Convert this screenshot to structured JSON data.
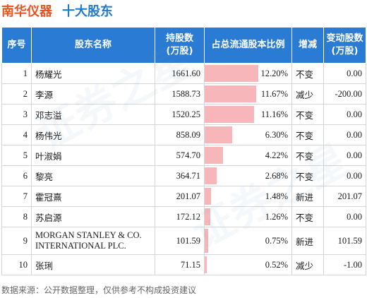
{
  "title": {
    "company": "南华仪器",
    "section": "十大股东"
  },
  "columns": [
    "序号",
    "股东名称",
    "持股数\n(万股)",
    "占总流通股本比例",
    "增减",
    "变动股数\n(万股)"
  ],
  "rows": [
    {
      "rank": "1",
      "name": "杨耀光",
      "shares": "1661.60",
      "ratio": "12.20%",
      "ratio_value": 12.2,
      "change": "不变",
      "change_type": "same",
      "delta": "0.00"
    },
    {
      "rank": "2",
      "name": "李源",
      "shares": "1588.73",
      "ratio": "11.67%",
      "ratio_value": 11.67,
      "change": "减少",
      "change_type": "down",
      "delta": "-200.00"
    },
    {
      "rank": "3",
      "name": "邓志溢",
      "shares": "1520.25",
      "ratio": "11.16%",
      "ratio_value": 11.16,
      "change": "不变",
      "change_type": "same",
      "delta": "0.00"
    },
    {
      "rank": "4",
      "name": "杨伟光",
      "shares": "858.09",
      "ratio": "6.30%",
      "ratio_value": 6.3,
      "change": "不变",
      "change_type": "same",
      "delta": "0.00"
    },
    {
      "rank": "5",
      "name": "叶淑娟",
      "shares": "574.70",
      "ratio": "4.22%",
      "ratio_value": 4.22,
      "change": "不变",
      "change_type": "same",
      "delta": "0.00"
    },
    {
      "rank": "6",
      "name": "黎亮",
      "shares": "364.71",
      "ratio": "2.68%",
      "ratio_value": 2.68,
      "change": "不变",
      "change_type": "same",
      "delta": "0.00"
    },
    {
      "rank": "7",
      "name": "霍冠熹",
      "shares": "201.07",
      "ratio": "1.48%",
      "ratio_value": 1.48,
      "change": "新进",
      "change_type": "new",
      "delta": "201.07"
    },
    {
      "rank": "8",
      "name": "苏启源",
      "shares": "172.12",
      "ratio": "1.26%",
      "ratio_value": 1.26,
      "change": "不变",
      "change_type": "same",
      "delta": "0.00"
    },
    {
      "rank": "9",
      "name": "MORGAN STANLEY & CO. INTERNATIONAL PLC.",
      "shares": "101.59",
      "ratio": "0.75%",
      "ratio_value": 0.75,
      "change": "新进",
      "change_type": "new",
      "delta": "101.59"
    },
    {
      "rank": "10",
      "name": "张琍",
      "shares": "71.15",
      "ratio": "0.52%",
      "ratio_value": 0.52,
      "change": "减少",
      "change_type": "down",
      "delta": "-1.00"
    }
  ],
  "footer": "数据来源：公开数据整理，仅供参考不构成投资建议",
  "watermark": "证券之星",
  "colors": {
    "company": "#e8531f",
    "section": "#1f7ad2",
    "header_bg": "#2a7bd3",
    "bar": "#f7b6ba",
    "up": "#d0201c",
    "down": "#1f9b3a"
  }
}
